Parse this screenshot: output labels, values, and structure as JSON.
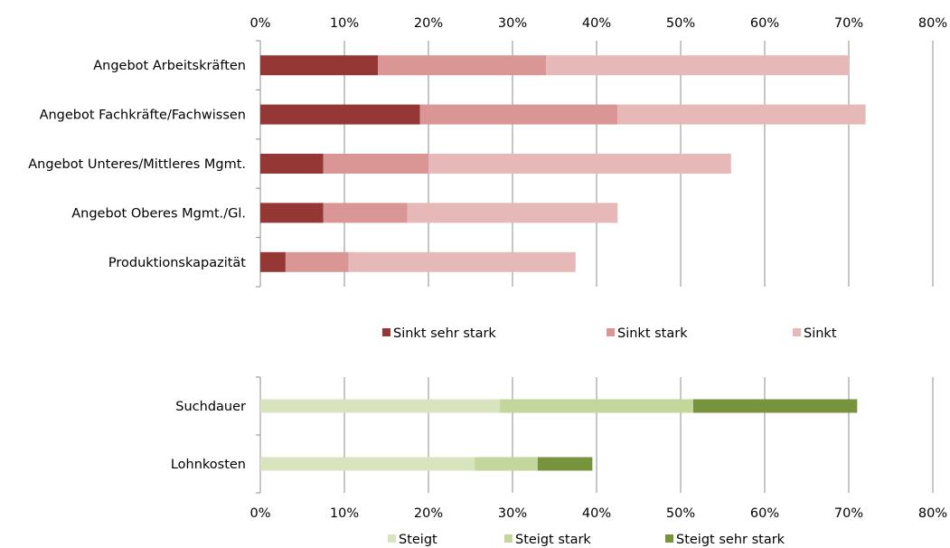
{
  "chart_data": [
    {
      "type": "bar",
      "orientation": "horizontal",
      "stacked": true,
      "categories": [
        "Angebot Arbeitskräften",
        "Angebot Fachkräfte/Fachwissen",
        "Angebot Unteres/Mittleres Mgmt.",
        "Angebot Oberes Mgmt./Gl.",
        "Produktionskapazität"
      ],
      "series": [
        {
          "name": "Sinkt sehr stark",
          "color": "#953735",
          "values": [
            14,
            19,
            7.5,
            7.5,
            3
          ]
        },
        {
          "name": "Sinkt stark",
          "color": "#d99694",
          "values": [
            20,
            23.5,
            12.5,
            10,
            7.5
          ]
        },
        {
          "name": "Sinkt",
          "color": "#e6b9b8",
          "values": [
            36,
            29.5,
            36,
            25,
            27
          ]
        }
      ],
      "xlim": [
        0,
        80
      ],
      "x_ticks": [
        "0%",
        "10%",
        "20%",
        "30%",
        "40%",
        "50%",
        "60%",
        "70%",
        "80%"
      ],
      "x_axis_position": "top",
      "grid": true,
      "legend_position": "bottom"
    },
    {
      "type": "bar",
      "orientation": "horizontal",
      "stacked": true,
      "categories": [
        "Suchdauer",
        "Lohnkosten"
      ],
      "series": [
        {
          "name": "Steigt",
          "color": "#d7e4bd",
          "values": [
            28.5,
            25.5
          ]
        },
        {
          "name": "Steigt stark",
          "color": "#c3d69b",
          "values": [
            23,
            7.5
          ]
        },
        {
          "name": "Steigt sehr stark",
          "color": "#77933c",
          "values": [
            19.5,
            6.5
          ]
        }
      ],
      "xlim": [
        0,
        80
      ],
      "x_ticks": [
        "0%",
        "10%",
        "20%",
        "30%",
        "40%",
        "50%",
        "60%",
        "70%",
        "80%"
      ],
      "x_axis_position": "bottom",
      "grid": true,
      "legend_position": "bottom"
    }
  ]
}
